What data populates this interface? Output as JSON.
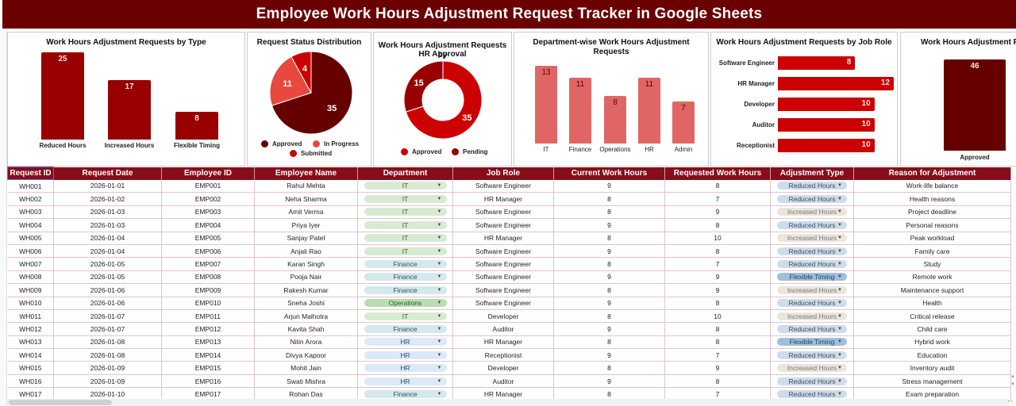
{
  "banner": {
    "title": "Employee Work Hours Adjustment Request Tracker in Google Sheets"
  },
  "colors": {
    "banner": "#6b0000",
    "header_row": "#870d1a",
    "dark_red": "#990000",
    "maroon": "#660000",
    "red": "#cc0000",
    "light_red": "#e06666",
    "salmon": "#e8493f",
    "chip_it": "#d9ead3",
    "chip_finance": "#d5e8ec",
    "chip_operations": "#b7dfb0",
    "chip_hr": "#dce9f8",
    "chip_reduced": "#cfdcea",
    "chip_increased": "#ebe6dc",
    "chip_flexible": "#9fbfdc"
  },
  "charts": {
    "by_type": {
      "title": "Work Hours Adjustment Requests by Type"
    },
    "status": {
      "title": "Request Status Distribution"
    },
    "hr_approval": {
      "title_line1": "Work Hours Adjustment Requests by",
      "title_line2": "HR Approval"
    },
    "department": {
      "title": "Department-wise Work Hours Adjustment Requests"
    },
    "job_role": {
      "title": "Work Hours Adjustment Requests by Job Role"
    },
    "approved": {
      "title": "Work Hours Adjustment R"
    }
  },
  "chart_data": [
    {
      "type": "bar",
      "title": "Work Hours Adjustment Requests by Type",
      "categories": [
        "Reduced Hours",
        "Increased Hours",
        "Flexible Timing"
      ],
      "values": [
        25,
        17,
        8
      ],
      "xlabel": "",
      "ylabel": "",
      "grid": false
    },
    {
      "type": "pie",
      "title": "Request Status Distribution",
      "categories": [
        "Approved",
        "In Progress",
        "Submitted"
      ],
      "values": [
        35,
        11,
        4
      ],
      "colors": [
        "#660000",
        "#e8493f",
        "#cc0000"
      ],
      "legend_position": "bottom"
    },
    {
      "type": "pie",
      "subtype": "donut",
      "title": "Work Hours Adjustment Requests by HR Approval",
      "categories": [
        "Approved",
        "Pending"
      ],
      "values": [
        35,
        15
      ],
      "colors": [
        "#cc0000",
        "#990000"
      ],
      "legend_position": "bottom"
    },
    {
      "type": "bar",
      "title": "Department-wise Work Hours Adjustment Requests",
      "categories": [
        "IT",
        "Finance",
        "Operations",
        "HR",
        "Admin"
      ],
      "values": [
        13,
        11,
        8,
        11,
        7
      ],
      "grid": false
    },
    {
      "type": "bar",
      "orientation": "horizontal",
      "title": "Work Hours Adjustment Requests by Job Role",
      "categories": [
        "Software Engineer",
        "HR Manager",
        "Developer",
        "Auditor",
        "Receptionist"
      ],
      "values": [
        8,
        12,
        10,
        10,
        10
      ],
      "grid": false
    },
    {
      "type": "bar",
      "title": "Work Hours Adjustment R",
      "categories": [
        "Approved"
      ],
      "values": [
        46
      ],
      "grid": false
    }
  ],
  "table": {
    "headers": [
      "Request ID",
      "Request Date",
      "Employee ID",
      "Employee Name",
      "Department",
      "Job Role",
      "Current Work Hours",
      "Requested Work Hours",
      "Adjustment Type",
      "Reason for Adjustment"
    ],
    "rows": [
      [
        "WH001",
        "2026-01-01",
        "EMP001",
        "Rahul Mehta",
        "IT",
        "Software Engineer",
        "9",
        "8",
        "Reduced Hours",
        "Work-life balance"
      ],
      [
        "WH002",
        "2026-01-02",
        "EMP002",
        "Neha Sharma",
        "IT",
        "HR Manager",
        "8",
        "7",
        "Reduced Hours",
        "Health reasons"
      ],
      [
        "WH003",
        "2026-01-03",
        "EMP003",
        "Amit Verma",
        "IT",
        "Software Engineer",
        "8",
        "9",
        "Increased Hours",
        "Project deadline"
      ],
      [
        "WH004",
        "2026-01-03",
        "EMP004",
        "Priya Iyer",
        "IT",
        "Software Engineer",
        "9",
        "8",
        "Reduced Hours",
        "Personal reasons"
      ],
      [
        "WH005",
        "2026-01-04",
        "EMP005",
        "Sanjay Patel",
        "IT",
        "HR Manager",
        "8",
        "10",
        "Increased Hours",
        "Peak workload"
      ],
      [
        "WH006",
        "2026-01-04",
        "EMP006",
        "Anjali Rao",
        "IT",
        "Software Engineer",
        "9",
        "8",
        "Reduced Hours",
        "Family care"
      ],
      [
        "WH007",
        "2026-01-05",
        "EMP007",
        "Karan Singh",
        "Finance",
        "Software Engineer",
        "8",
        "7",
        "Reduced Hours",
        "Study"
      ],
      [
        "WH008",
        "2026-01-05",
        "EMP008",
        "Pooja Nair",
        "Finance",
        "Software Engineer",
        "9",
        "9",
        "Flexible Timing",
        "Remote work"
      ],
      [
        "WH009",
        "2026-01-06",
        "EMP009",
        "Rakesh Kumar",
        "Finance",
        "Software Engineer",
        "8",
        "9",
        "Increased Hours",
        "Maintenance support"
      ],
      [
        "WH010",
        "2026-01-06",
        "EMP010",
        "Sneha Joshi",
        "Operations",
        "Software Engineer",
        "9",
        "8",
        "Reduced Hours",
        "Health"
      ],
      [
        "WH011",
        "2026-01-07",
        "EMP011",
        "Arjun Malhotra",
        "IT",
        "Developer",
        "8",
        "10",
        "Increased Hours",
        "Critical release"
      ],
      [
        "WH012",
        "2026-01-07",
        "EMP012",
        "Kavita Shah",
        "Finance",
        "Auditor",
        "9",
        "8",
        "Reduced Hours",
        "Child care"
      ],
      [
        "WH013",
        "2026-01-08",
        "EMP013",
        "Nitin Arora",
        "HR",
        "HR Manager",
        "8",
        "8",
        "Flexible Timing",
        "Hybrid work"
      ],
      [
        "WH014",
        "2026-01-08",
        "EMP014",
        "Divya Kapoor",
        "HR",
        "Receptionist",
        "9",
        "7",
        "Reduced Hours",
        "Education"
      ],
      [
        "WH015",
        "2026-01-09",
        "EMP015",
        "Mohit Jain",
        "HR",
        "Developer",
        "8",
        "9",
        "Increased Hours",
        "Inventory audit"
      ],
      [
        "WH016",
        "2026-01-09",
        "EMP016",
        "Swati Mishra",
        "HR",
        "Auditor",
        "9",
        "8",
        "Reduced Hours",
        "Stress management"
      ],
      [
        "WH017",
        "2026-01-10",
        "EMP017",
        "Rohan Das",
        "Finance",
        "HR Manager",
        "8",
        "7",
        "Reduced Hours",
        "Exam preparation"
      ]
    ],
    "dropdown_arrow": "▼"
  },
  "scroll": {
    "left_arrow": "‹",
    "right_arrow": "›",
    "up_arrow": "▲",
    "down_arrow": "▼"
  }
}
